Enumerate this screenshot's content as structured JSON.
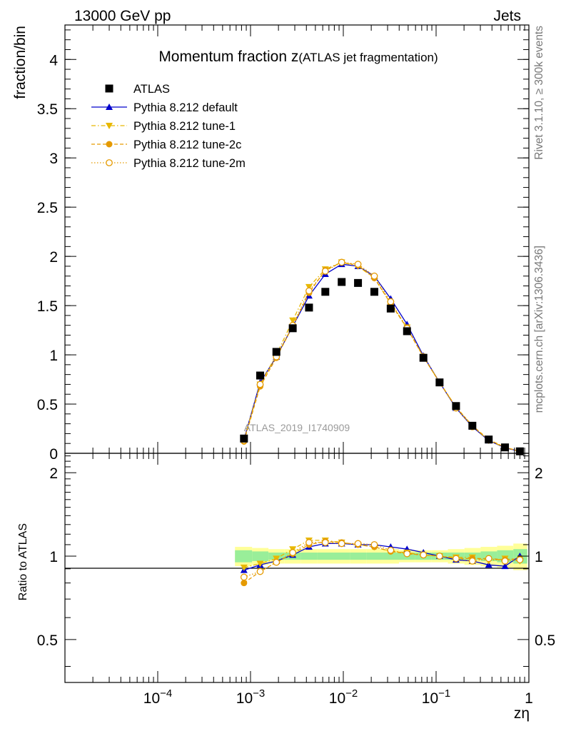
{
  "header": {
    "energy_label": "13000 GeV pp",
    "category_label": "Jets"
  },
  "side_labels": {
    "rivet": "Rivet 3.1.10, ≥ 300k events",
    "mcplots": "mcplots.cern.ch [arXiv:1306.3436]"
  },
  "chart_data": {
    "type": "line",
    "title_main": "Momentum fraction z",
    "title_sub": "(ATLAS jet fragmentation)",
    "watermark": "ATLAS_2019_I1740909",
    "xlabel": "zη",
    "ylabel": "fraction/bin",
    "ratio_ylabel": "Ratio to ATLAS",
    "xscale": "log",
    "xlim": [
      1e-05,
      1
    ],
    "ylim": [
      0,
      4.35
    ],
    "ratio_ylim": [
      0.35,
      2.35
    ],
    "x_ticks": [
      {
        "value": 0.0001,
        "base": "10",
        "exp": "−4"
      },
      {
        "value": 0.001,
        "base": "10",
        "exp": "−3"
      },
      {
        "value": 0.01,
        "base": "10",
        "exp": "−2"
      },
      {
        "value": 0.1,
        "base": "10",
        "exp": "−1"
      },
      {
        "value": 1,
        "base": "1",
        "exp": ""
      }
    ],
    "y_ticks": [
      {
        "value": 0,
        "label": "0"
      },
      {
        "value": 0.5,
        "label": "0.5"
      },
      {
        "value": 1,
        "label": "1"
      },
      {
        "value": 1.5,
        "label": "1.5"
      },
      {
        "value": 2,
        "label": "2"
      },
      {
        "value": 2.5,
        "label": "2.5"
      },
      {
        "value": 3,
        "label": "3"
      },
      {
        "value": 3.5,
        "label": "3.5"
      },
      {
        "value": 4,
        "label": "4"
      }
    ],
    "ratio_y_ticks": [
      {
        "value": 0.5,
        "label": "0.5"
      },
      {
        "value": 1,
        "label": "1"
      },
      {
        "value": 2,
        "label": "2"
      }
    ],
    "legend_position": "top-left",
    "x": [
      0.00085,
      0.00127,
      0.0019,
      0.00285,
      0.00427,
      0.0064,
      0.0096,
      0.0144,
      0.0216,
      0.0324,
      0.0486,
      0.073,
      0.109,
      0.164,
      0.246,
      0.369,
      0.553,
      0.8
    ],
    "band_edges": [
      0.00068,
      0.00104,
      0.00156,
      0.00233,
      0.0035,
      0.00525,
      0.00787,
      0.0118,
      0.0177,
      0.0265,
      0.0398,
      0.0597,
      0.0896,
      0.134,
      0.202,
      0.302,
      0.454,
      0.68,
      0.96
    ],
    "band_stat": [
      0.05,
      0.04,
      0.03,
      0.03,
      0.03,
      0.03,
      0.03,
      0.03,
      0.03,
      0.03,
      0.03,
      0.03,
      0.03,
      0.03,
      0.03,
      0.04,
      0.05,
      0.06
    ],
    "band_total": [
      0.08,
      0.07,
      0.06,
      0.06,
      0.06,
      0.06,
      0.06,
      0.06,
      0.06,
      0.06,
      0.05,
      0.05,
      0.05,
      0.06,
      0.07,
      0.08,
      0.09,
      0.11
    ],
    "series": [
      {
        "name": "ATLAS",
        "style": "data",
        "color": "#000000",
        "values": [
          0.15,
          0.79,
          1.03,
          1.27,
          1.48,
          1.64,
          1.74,
          1.73,
          1.64,
          1.47,
          1.24,
          0.97,
          0.72,
          0.48,
          0.28,
          0.14,
          0.06,
          0.02
        ]
      },
      {
        "name": "Pythia 8.212 default",
        "style": "solid",
        "marker": "triangle-up",
        "color": "#0000cc",
        "values": [
          0.14,
          0.72,
          0.98,
          1.29,
          1.6,
          1.82,
          1.92,
          1.9,
          1.8,
          1.57,
          1.31,
          0.99,
          0.72,
          0.46,
          0.27,
          0.13,
          0.055,
          0.02
        ]
      },
      {
        "name": "Pythia 8.212 tune-1",
        "style": "dashdot",
        "marker": "triangle-down",
        "color": "#e8b800",
        "values": [
          0.14,
          0.7,
          1.0,
          1.35,
          1.69,
          1.87,
          1.94,
          1.9,
          1.78,
          1.52,
          1.28,
          0.98,
          0.72,
          0.47,
          0.28,
          0.13,
          0.06,
          0.02
        ]
      },
      {
        "name": "Pythia 8.212 tune-2c",
        "style": "dashed",
        "marker": "circle",
        "color": "#e59a00",
        "values": [
          0.12,
          0.68,
          0.97,
          1.29,
          1.63,
          1.86,
          1.94,
          1.91,
          1.78,
          1.52,
          1.27,
          0.98,
          0.72,
          0.47,
          0.28,
          0.14,
          0.06,
          0.02
        ]
      },
      {
        "name": "Pythia 8.212 tune-2m",
        "style": "dotted",
        "marker": "open-circle",
        "color": "#e59a00",
        "values": [
          0.13,
          0.7,
          0.98,
          1.3,
          1.65,
          1.85,
          1.94,
          1.92,
          1.8,
          1.54,
          1.27,
          0.98,
          0.72,
          0.46,
          0.27,
          0.14,
          0.06,
          0.02
        ]
      }
    ],
    "ratios": [
      {
        "name": "Pythia 8.212 default",
        "values": [
          0.89,
          0.93,
          0.96,
          1.01,
          1.08,
          1.11,
          1.11,
          1.1,
          1.1,
          1.08,
          1.06,
          1.03,
          1.0,
          0.97,
          0.96,
          0.93,
          0.92,
          1.0
        ]
      },
      {
        "name": "Pythia 8.212 tune-1",
        "values": [
          0.91,
          0.94,
          0.98,
          1.06,
          1.14,
          1.14,
          1.12,
          1.1,
          1.08,
          1.04,
          1.03,
          1.01,
          1.0,
          0.99,
          0.99,
          0.96,
          0.98,
          0.96
        ]
      },
      {
        "name": "Pythia 8.212 tune-2c",
        "values": [
          0.8,
          0.88,
          0.95,
          1.02,
          1.1,
          1.13,
          1.12,
          1.1,
          1.08,
          1.04,
          1.02,
          1.01,
          1.0,
          0.98,
          0.98,
          0.98,
          0.97,
          0.98
        ]
      },
      {
        "name": "Pythia 8.212 tune-2m",
        "values": [
          0.84,
          0.88,
          0.95,
          1.03,
          1.12,
          1.12,
          1.11,
          1.11,
          1.1,
          1.05,
          1.02,
          1.01,
          1.0,
          0.98,
          0.96,
          0.98,
          0.96,
          0.97
        ]
      }
    ]
  }
}
